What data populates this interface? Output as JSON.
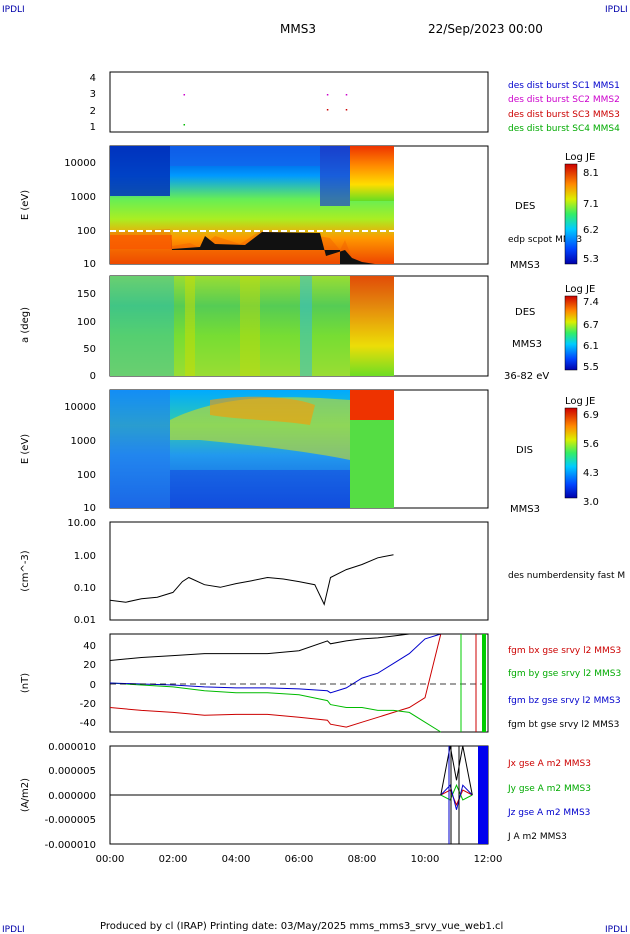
{
  "header": {
    "corner_left": "IPDLI",
    "corner_right": "IPDLI",
    "mission": "MMS3",
    "date": "22/Sep/2023 00:00"
  },
  "footer": {
    "text": "Produced by cl (IRAP)   Printing date: 03/May/2025   mms_mms3_srvy_vue_web1.cl",
    "corner_left": "IPDLI",
    "corner_right": "IPDLI"
  },
  "time_axis": {
    "labels": [
      "00:00",
      "02:00",
      "04:00",
      "06:00",
      "08:00",
      "10:00",
      "12:00"
    ],
    "range_hours": [
      0,
      12
    ]
  },
  "panels": {
    "burst": {
      "yticks": [
        "4",
        "3",
        "2",
        "1"
      ],
      "legend": [
        "des dist burst SC1 MMS1",
        "des dist burst SC2 MMS2",
        "des dist burst SC3 MMS3",
        "des dist burst SC4 MMS4"
      ],
      "legend_colors": [
        "#0000cc",
        "#cc00cc",
        "#cc0000",
        "#00bb00"
      ]
    },
    "des_energy": {
      "ylabel": "E (eV)",
      "yticks": [
        "10000",
        "1000",
        "100",
        "10"
      ],
      "label": "DES",
      "overlay_label": "edp scpot MMS3",
      "mission": "MMS3",
      "colorbar_title": "Log JE",
      "colorbar_ticks": [
        "8.1",
        "7.1",
        "6.2",
        "5.3"
      ]
    },
    "des_pitch": {
      "ylabel": "a (deg)",
      "yticks": [
        "150",
        "100",
        "50",
        "0"
      ],
      "label": "DES",
      "mission": "MMS3",
      "energy_range": "36-82 eV",
      "colorbar_title": "Log JE",
      "colorbar_ticks": [
        "7.4",
        "6.7",
        "6.1",
        "5.5"
      ]
    },
    "dis_energy": {
      "ylabel": "E (eV)",
      "yticks": [
        "10000",
        "1000",
        "100",
        "10"
      ],
      "label": "DIS",
      "mission": "MMS3",
      "colorbar_title": "Log JE",
      "colorbar_ticks": [
        "6.9",
        "5.6",
        "4.3",
        "3.0"
      ]
    },
    "density": {
      "ylabel": "(cm^-3)",
      "yticks": [
        "10.00",
        "1.00",
        "0.10",
        "0.01"
      ],
      "legend": "des numberdensity fast M"
    },
    "magnetic": {
      "ylabel": "(nT)",
      "yticks": [
        "40",
        "20",
        "0",
        "-20",
        "-40"
      ],
      "legend": [
        "fgm bx gse srvy l2 MMS3",
        "fgm by gse srvy l2 MMS3",
        "fgm bz gse srvy l2 MMS3",
        "fgm bt gse srvy l2 MMS3"
      ],
      "legend_colors": [
        "#cc0000",
        "#00bb00",
        "#0000cc",
        "#000000"
      ]
    },
    "current": {
      "ylabel": "(A/m2)",
      "yticks": [
        "0.000010",
        "0.000005",
        "0.000000",
        "-0.000005",
        "-0.000010"
      ],
      "legend": [
        "Jx gse A m2 MMS3",
        "Jy gse A m2 MMS3",
        "Jz gse A m2 MMS3",
        "J A m2 MMS3"
      ],
      "legend_colors": [
        "#cc0000",
        "#00bb00",
        "#0000cc",
        "#000000"
      ]
    }
  },
  "chart_data": [
    {
      "type": "scatter",
      "ylim": [
        0.5,
        4.5
      ],
      "x_hours": [
        2.35,
        2.35,
        6.9,
        7.5,
        7.5,
        6.9
      ],
      "y": [
        1,
        3,
        3,
        3,
        2,
        2
      ]
    },
    {
      "type": "heatmap",
      "ylabel": "E (eV)",
      "ylim": [
        10,
        30000
      ],
      "y_scale": "log",
      "colorbar": [
        5.3,
        8.1
      ]
    },
    {
      "type": "heatmap",
      "ylabel": "a (deg)",
      "ylim": [
        0,
        180
      ],
      "colorbar": [
        5.5,
        7.4
      ]
    },
    {
      "type": "heatmap",
      "ylabel": "E (eV)",
      "ylim": [
        10,
        30000
      ],
      "y_scale": "log",
      "colorbar": [
        3.0,
        6.9
      ]
    },
    {
      "type": "line",
      "ylabel": "(cm^-3)",
      "ylim": [
        0.01,
        10
      ],
      "y_scale": "log",
      "x_hours": [
        0,
        0.5,
        1,
        1.5,
        2,
        2.3,
        2.5,
        3,
        3.5,
        4,
        4.5,
        5,
        5.5,
        6,
        6.5,
        6.8,
        7,
        7.5,
        8,
        8.5,
        9
      ],
      "y": [
        0.04,
        0.035,
        0.045,
        0.05,
        0.07,
        0.15,
        0.2,
        0.12,
        0.1,
        0.13,
        0.16,
        0.2,
        0.18,
        0.15,
        0.12,
        0.03,
        0.2,
        0.35,
        0.5,
        0.8,
        1.0
      ]
    },
    {
      "type": "line",
      "ylabel": "(nT)",
      "ylim": [
        -50,
        50
      ],
      "x_hours": [
        0,
        1,
        2,
        3,
        4,
        5,
        6,
        6.9,
        7,
        7.5,
        8,
        8.5,
        9,
        9.5,
        10,
        10.5
      ],
      "series": [
        {
          "name": "fgm bx gse srvy l2 MMS3",
          "values": [
            -25,
            -28,
            -30,
            -33,
            -32,
            -32,
            -35,
            -38,
            -42,
            -45,
            -40,
            -35,
            -30,
            -25,
            -15,
            50
          ]
        },
        {
          "name": "fgm by gse srvy l2 MMS3",
          "values": [
            0,
            -2,
            -4,
            -8,
            -10,
            -10,
            -12,
            -18,
            -22,
            -25,
            -25,
            -28,
            -28,
            -30,
            -40,
            -50
          ]
        },
        {
          "name": "fgm bz gse srvy l2 MMS3",
          "values": [
            0,
            -1,
            -2,
            -4,
            -5,
            -5,
            -6,
            -8,
            -10,
            -5,
            5,
            10,
            20,
            30,
            45,
            50
          ]
        },
        {
          "name": "fgm bt gse srvy l2 MMS3",
          "values": [
            23,
            26,
            28,
            30,
            30,
            30,
            33,
            43,
            40,
            43,
            45,
            46,
            48,
            50,
            50,
            50
          ]
        }
      ]
    },
    {
      "type": "line",
      "ylabel": "(A/m2)",
      "ylim": [
        -1e-05,
        1e-05
      ],
      "x_hours": [
        0,
        2,
        4,
        6,
        8,
        9,
        10,
        10.5,
        10.8,
        11,
        11.2,
        11.5
      ],
      "series": [
        {
          "name": "Jx gse A m2 MMS3",
          "values": [
            0,
            0,
            0,
            0,
            0,
            0,
            0,
            0,
            1e-06,
            -2e-06,
            1e-06,
            0
          ]
        },
        {
          "name": "Jy gse A m2 MMS3",
          "values": [
            0,
            0,
            0,
            0,
            0,
            0,
            0,
            0,
            -1e-06,
            2e-06,
            -1e-06,
            0
          ]
        },
        {
          "name": "Jz gse A m2 MMS3",
          "values": [
            0,
            0,
            0,
            0,
            0,
            0,
            0,
            0,
            2e-06,
            -3e-06,
            2e-06,
            0
          ]
        },
        {
          "name": "J A m2 MMS3",
          "values": [
            0,
            0,
            0,
            0,
            0,
            0,
            0,
            0,
            1e-05,
            3e-06,
            1e-05,
            0
          ]
        }
      ]
    }
  ]
}
